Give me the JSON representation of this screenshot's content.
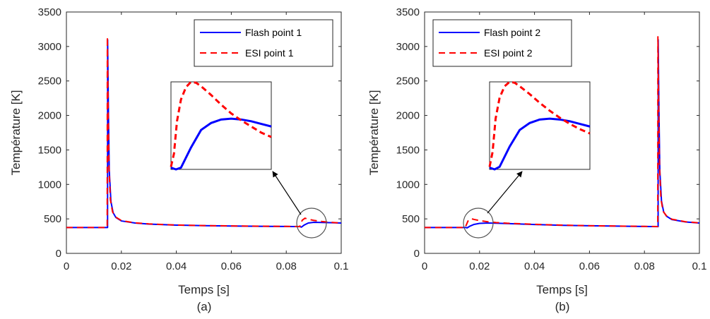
{
  "chart_data": [
    {
      "type": "line",
      "caption": "(a)",
      "xlabel": "Temps [s]",
      "ylabel": "Température [K]",
      "xlim": [
        0,
        0.1
      ],
      "ylim": [
        0,
        3500
      ],
      "xticks": [
        "0",
        "0.02",
        "0.04",
        "0.06",
        "0.08",
        "0.1"
      ],
      "yticks": [
        "0",
        "500",
        "1000",
        "1500",
        "2000",
        "2500",
        "3000",
        "3500"
      ],
      "legend_position": "top-right",
      "series": [
        {
          "name": "Flash point 1",
          "color": "#0000ff",
          "style": "solid",
          "x": [
            0,
            0.01498,
            0.015,
            0.0153,
            0.0156,
            0.0162,
            0.017,
            0.018,
            0.02,
            0.025,
            0.03,
            0.04,
            0.05,
            0.06,
            0.07,
            0.08,
            0.085,
            0.0855,
            0.0865,
            0.088,
            0.09,
            0.093,
            0.096,
            0.1
          ],
          "y": [
            375,
            375,
            3100,
            2000,
            1200,
            750,
            590,
            520,
            470,
            440,
            425,
            410,
            402,
            397,
            393,
            390,
            388,
            380,
            410,
            440,
            450,
            448,
            445,
            440
          ]
        },
        {
          "name": "ESI point 1",
          "color": "#ff0000",
          "style": "dashed",
          "x": [
            0,
            0.01485,
            0.0149,
            0.0152,
            0.0155,
            0.016,
            0.0168,
            0.018,
            0.02,
            0.025,
            0.03,
            0.04,
            0.05,
            0.06,
            0.07,
            0.08,
            0.08495,
            0.085,
            0.0858,
            0.0868,
            0.088,
            0.09,
            0.093,
            0.096,
            0.1
          ],
          "y": [
            375,
            375,
            3140,
            2100,
            1250,
            780,
            600,
            525,
            475,
            442,
            427,
            411,
            403,
            398,
            394,
            391,
            389,
            400,
            480,
            510,
            495,
            478,
            462,
            450,
            440
          ]
        }
      ],
      "inset": {
        "description_zoom": "zoom around t≈0.085–0.095 s",
        "flash": [
          [
            0,
            0.02
          ],
          [
            0.05,
            0.0
          ],
          [
            0.1,
            0.02
          ],
          [
            0.2,
            0.25
          ],
          [
            0.3,
            0.45
          ],
          [
            0.4,
            0.53
          ],
          [
            0.5,
            0.57
          ],
          [
            0.6,
            0.58
          ],
          [
            0.7,
            0.57
          ],
          [
            0.8,
            0.55
          ],
          [
            0.9,
            0.52
          ],
          [
            1.0,
            0.49
          ]
        ],
        "esi": [
          [
            0,
            0.03
          ],
          [
            0.03,
            0.18
          ],
          [
            0.06,
            0.55
          ],
          [
            0.1,
            0.8
          ],
          [
            0.15,
            0.94
          ],
          [
            0.2,
            1.0
          ],
          [
            0.25,
            0.99
          ],
          [
            0.3,
            0.95
          ],
          [
            0.4,
            0.85
          ],
          [
            0.5,
            0.74
          ],
          [
            0.6,
            0.64
          ],
          [
            0.7,
            0.56
          ],
          [
            0.8,
            0.49
          ],
          [
            0.9,
            0.42
          ],
          [
            1.0,
            0.37
          ]
        ]
      }
    },
    {
      "type": "line",
      "caption": "(b)",
      "xlabel": "Temps [s]",
      "ylabel": "Température [K]",
      "xlim": [
        0,
        0.1
      ],
      "ylim": [
        0,
        3500
      ],
      "xticks": [
        "0",
        "0.02",
        "0.04",
        "0.06",
        "0.08",
        "0.1"
      ],
      "yticks": [
        "0",
        "500",
        "1000",
        "1500",
        "2000",
        "2500",
        "3000",
        "3500"
      ],
      "legend_position": "top-left",
      "series": [
        {
          "name": "Flash point 2",
          "color": "#0000ff",
          "style": "solid",
          "x": [
            0,
            0.015,
            0.0155,
            0.0165,
            0.018,
            0.02,
            0.023,
            0.026,
            0.03,
            0.04,
            0.05,
            0.06,
            0.07,
            0.08,
            0.08498,
            0.085,
            0.0853,
            0.0856,
            0.0862,
            0.087,
            0.088,
            0.09,
            0.095,
            0.1
          ],
          "y": [
            375,
            375,
            370,
            395,
            420,
            435,
            440,
            438,
            432,
            418,
            407,
            400,
            395,
            390,
            388,
            3100,
            2000,
            1200,
            760,
            600,
            540,
            490,
            455,
            440
          ]
        },
        {
          "name": "ESI point 2",
          "color": "#ff0000",
          "style": "dashed",
          "x": [
            0,
            0.01495,
            0.015,
            0.0158,
            0.0168,
            0.018,
            0.02,
            0.023,
            0.026,
            0.03,
            0.04,
            0.05,
            0.06,
            0.07,
            0.08,
            0.08485,
            0.0849,
            0.0852,
            0.0855,
            0.086,
            0.0868,
            0.088,
            0.09,
            0.095,
            0.1
          ],
          "y": [
            375,
            375,
            395,
            470,
            505,
            492,
            475,
            458,
            447,
            437,
            421,
            409,
            401,
            396,
            391,
            389,
            3140,
            2100,
            1250,
            790,
            610,
            545,
            495,
            458,
            442
          ]
        }
      ],
      "inset": {
        "description_zoom": "zoom around t≈0.015–0.025 s",
        "flash": [
          [
            0,
            0.02
          ],
          [
            0.05,
            0.0
          ],
          [
            0.1,
            0.03
          ],
          [
            0.2,
            0.26
          ],
          [
            0.3,
            0.45
          ],
          [
            0.4,
            0.53
          ],
          [
            0.5,
            0.57
          ],
          [
            0.6,
            0.58
          ],
          [
            0.7,
            0.57
          ],
          [
            0.8,
            0.55
          ],
          [
            0.9,
            0.52
          ],
          [
            1.0,
            0.49
          ]
        ],
        "esi": [
          [
            0,
            0.03
          ],
          [
            0.03,
            0.2
          ],
          [
            0.06,
            0.58
          ],
          [
            0.1,
            0.82
          ],
          [
            0.15,
            0.95
          ],
          [
            0.2,
            1.0
          ],
          [
            0.25,
            0.99
          ],
          [
            0.3,
            0.95
          ],
          [
            0.4,
            0.86
          ],
          [
            0.5,
            0.76
          ],
          [
            0.6,
            0.67
          ],
          [
            0.7,
            0.59
          ],
          [
            0.8,
            0.52
          ],
          [
            0.9,
            0.46
          ],
          [
            1.0,
            0.41
          ]
        ]
      }
    }
  ]
}
